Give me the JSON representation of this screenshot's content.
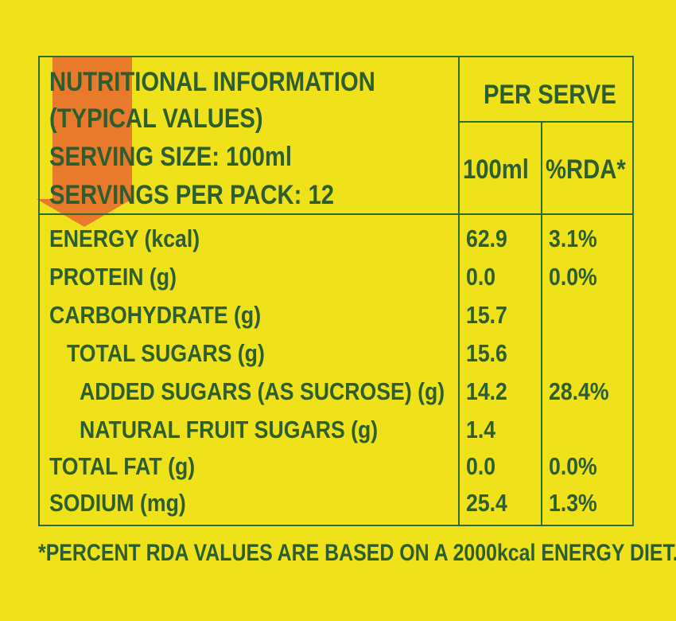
{
  "colors": {
    "background": "#EFE21A",
    "text": "#2C5E30",
    "rule": "#2F6B35",
    "arrow": "#EA7A2B"
  },
  "header": {
    "lines": [
      "NUTRITIONAL INFORMATION",
      "(TYPICAL VALUES)",
      "SERVING SIZE: 100ml",
      "SERVINGS PER PACK: 12"
    ],
    "per_serve": "PER SERVE",
    "col_100ml": "100ml",
    "col_rda": "%RDA*"
  },
  "rows": [
    {
      "label": "ENERGY (kcal)",
      "value": "62.9",
      "rda": "3.1%"
    },
    {
      "label": "PROTEIN (g)",
      "value": "0.0",
      "rda": "0.0%"
    },
    {
      "label": "CARBOHYDRATE (g)",
      "value": "15.7",
      "rda": ""
    },
    {
      "label": "TOTAL SUGARS (g)",
      "value": "15.6",
      "rda": ""
    },
    {
      "label": "ADDED SUGARS (AS SUCROSE) (g)",
      "value": "14.2",
      "rda": "28.4%"
    },
    {
      "label": "NATURAL FRUIT SUGARS (g)",
      "value": "1.4",
      "rda": ""
    },
    {
      "label": "TOTAL FAT (g)",
      "value": "0.0",
      "rda": "0.0%"
    },
    {
      "label": "SODIUM (mg)",
      "value": "25.4",
      "rda": "1.3%"
    }
  ],
  "footnote": "*PERCENT RDA VALUES ARE BASED ON A 2000kcal ENERGY DIET.",
  "icons": {
    "arrow": "down-arrow-icon"
  }
}
